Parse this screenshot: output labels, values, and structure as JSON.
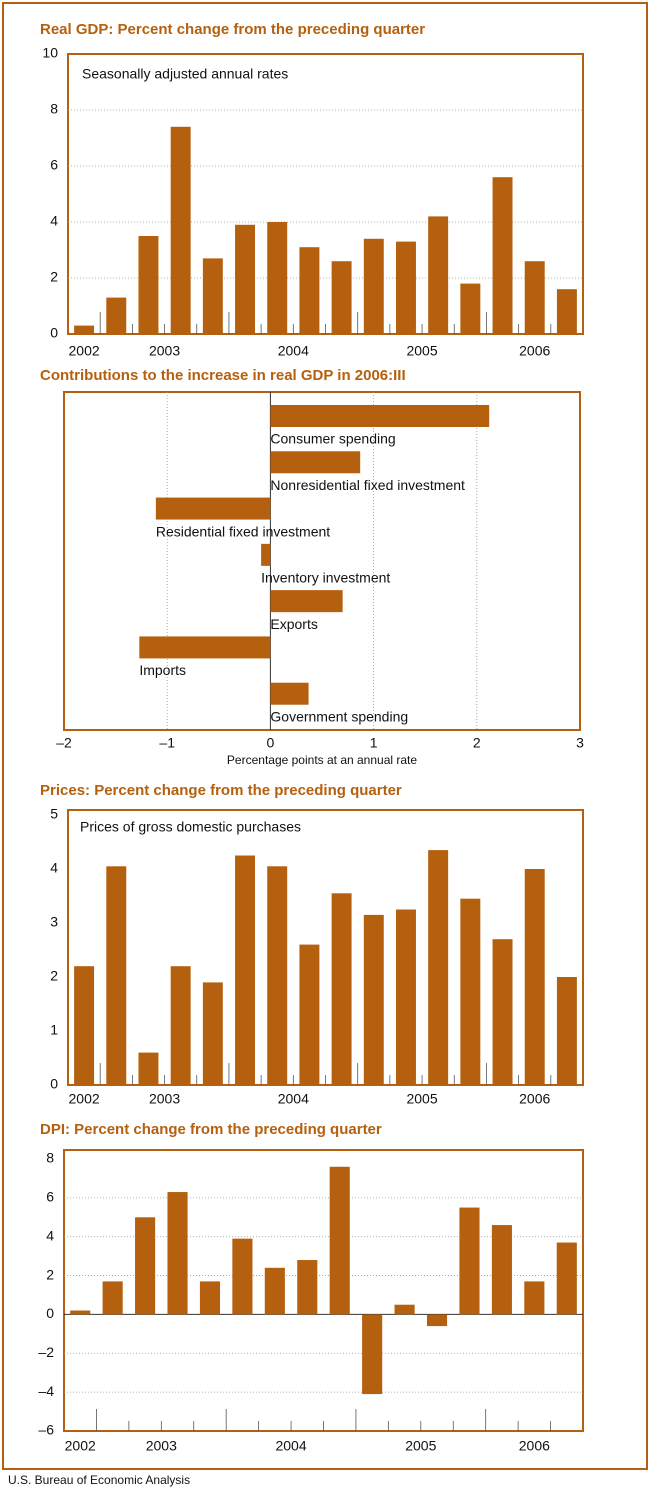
{
  "chart_data": [
    {
      "type": "bar",
      "title": "Real GDP: Percent change from the preceding quarter",
      "subtitle": "Seasonally adjusted annual rates",
      "categories": [
        null,
        null,
        null,
        null,
        null,
        null,
        null,
        null,
        null,
        null,
        null,
        null,
        null,
        null,
        null,
        null
      ],
      "groups": [
        {
          "label": "2002",
          "size": 1
        },
        {
          "label": "2003",
          "size": 4
        },
        {
          "label": "2004",
          "size": 4
        },
        {
          "label": "2005",
          "size": 4
        },
        {
          "label": "2006",
          "size": 3
        }
      ],
      "values": [
        0.3,
        1.3,
        3.5,
        7.4,
        2.7,
        3.9,
        4.0,
        3.1,
        2.6,
        3.4,
        3.3,
        4.2,
        1.8,
        5.6,
        2.6,
        1.6
      ],
      "color": "#b5600f",
      "ylim": [
        0,
        10
      ],
      "yticks": [
        0,
        2,
        4,
        6,
        8,
        10
      ],
      "grid": true
    },
    {
      "type": "barh",
      "title": "Contributions to the increase in real GDP in 2006:III",
      "categories": [
        "Consumer spending",
        "Nonresidential fixed investment",
        "Residential fixed investment",
        "Inventory investment",
        "Exports",
        "Imports",
        "Government spending"
      ],
      "values": [
        2.12,
        0.87,
        -1.11,
        -0.09,
        0.7,
        -1.27,
        0.37
      ],
      "color": "#b5600f",
      "xlim": [
        -2,
        3
      ],
      "xticks": [
        {
          "value": -2,
          "label": "–2"
        },
        {
          "value": -1,
          "label": "–1"
        },
        0,
        1,
        2,
        3
      ],
      "xlabel": "Percentage points at an annual rate",
      "grid": true
    },
    {
      "type": "bar",
      "title": "Prices: Percent change from the preceding quarter",
      "subtitle": "Prices of gross domestic purchases",
      "categories": [
        null,
        null,
        null,
        null,
        null,
        null,
        null,
        null,
        null,
        null,
        null,
        null,
        null,
        null,
        null,
        null
      ],
      "groups": [
        {
          "label": "2002",
          "size": 1
        },
        {
          "label": "2003",
          "size": 4
        },
        {
          "label": "2004",
          "size": 4
        },
        {
          "label": "2005",
          "size": 4
        },
        {
          "label": "2006",
          "size": 3
        }
      ],
      "values": [
        2.2,
        4.05,
        0.6,
        2.2,
        1.9,
        4.25,
        4.05,
        2.6,
        3.55,
        3.15,
        3.25,
        4.35,
        3.45,
        2.7,
        4.0,
        2.0
      ],
      "color": "#b5600f",
      "ylim": [
        0,
        5
      ],
      "yticks": [
        0,
        1,
        2,
        3,
        4,
        5
      ],
      "grid": false
    },
    {
      "type": "bar",
      "title": "DPI: Percent change from the preceding quarter",
      "categories": [
        null,
        null,
        null,
        null,
        null,
        null,
        null,
        null,
        null,
        null,
        null,
        null,
        null,
        null,
        null,
        null
      ],
      "groups": [
        {
          "label": "2002",
          "size": 1
        },
        {
          "label": "2003",
          "size": 4
        },
        {
          "label": "2004",
          "size": 4
        },
        {
          "label": "2005",
          "size": 4
        },
        {
          "label": "2006",
          "size": 3
        }
      ],
      "values": [
        0.2,
        1.7,
        5.0,
        6.3,
        1.7,
        3.9,
        2.4,
        2.8,
        7.6,
        -4.1,
        0.5,
        -0.6,
        5.5,
        4.6,
        1.7,
        3.7
      ],
      "color": "#b5600f",
      "ylim": [
        -6,
        8
      ],
      "yticks": [
        {
          "value": -6,
          "label": "–6"
        },
        {
          "value": -4,
          "label": "–4"
        },
        {
          "value": -2,
          "label": "–2"
        },
        0,
        2,
        4,
        6,
        8
      ],
      "grid": true
    }
  ],
  "footer": "U.S. Bureau of Economic Analysis"
}
